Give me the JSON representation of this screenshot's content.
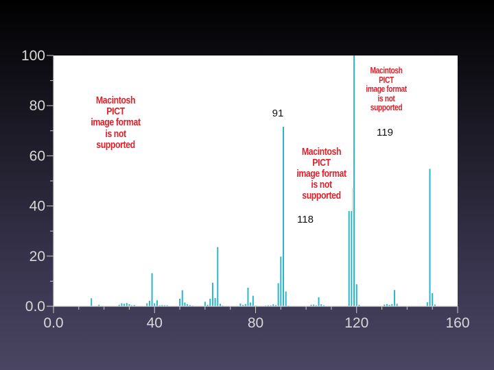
{
  "chart_data": {
    "type": "bar",
    "xlim": [
      0,
      160
    ],
    "ylim": [
      0,
      100
    ],
    "x_ticks": [
      "0.0",
      "40",
      "80",
      "120",
      "160"
    ],
    "y_ticks": [
      "0.0",
      "20",
      "40",
      "60",
      "80",
      "100"
    ],
    "x_minor_step": 10,
    "y_minor_step": 10,
    "grid": false,
    "bar_color": "#29b6c8",
    "peaks": [
      {
        "x": 15,
        "y": 3.2
      },
      {
        "x": 18,
        "y": 0.6
      },
      {
        "x": 26,
        "y": 0.6
      },
      {
        "x": 27,
        "y": 1.2
      },
      {
        "x": 28,
        "y": 1.0
      },
      {
        "x": 29,
        "y": 1.3
      },
      {
        "x": 30,
        "y": 0.8
      },
      {
        "x": 31,
        "y": 0.4
      },
      {
        "x": 32,
        "y": 0.5
      },
      {
        "x": 37,
        "y": 1.2
      },
      {
        "x": 38,
        "y": 2.2
      },
      {
        "x": 39,
        "y": 13.2
      },
      {
        "x": 40,
        "y": 1.2
      },
      {
        "x": 41,
        "y": 2.4
      },
      {
        "x": 42,
        "y": 0.4
      },
      {
        "x": 43,
        "y": 0.5
      },
      {
        "x": 44,
        "y": 0.4
      },
      {
        "x": 45,
        "y": 0.4
      },
      {
        "x": 50,
        "y": 3.0
      },
      {
        "x": 51,
        "y": 6.4
      },
      {
        "x": 52,
        "y": 1.5
      },
      {
        "x": 53,
        "y": 0.8
      },
      {
        "x": 54,
        "y": 0.5
      },
      {
        "x": 55,
        "y": 0.3
      },
      {
        "x": 60,
        "y": 1.8
      },
      {
        "x": 61,
        "y": 0.6
      },
      {
        "x": 62,
        "y": 3.0
      },
      {
        "x": 63,
        "y": 9.4
      },
      {
        "x": 64,
        "y": 3.3
      },
      {
        "x": 65,
        "y": 23.6
      },
      {
        "x": 66,
        "y": 1.0
      },
      {
        "x": 67,
        "y": 0.3
      },
      {
        "x": 74,
        "y": 1.1
      },
      {
        "x": 75,
        "y": 0.6
      },
      {
        "x": 76,
        "y": 0.9
      },
      {
        "x": 77,
        "y": 7.4
      },
      {
        "x": 78,
        "y": 1.5
      },
      {
        "x": 79,
        "y": 4.2
      },
      {
        "x": 80,
        "y": 0.3
      },
      {
        "x": 84,
        "y": 0.3
      },
      {
        "x": 85,
        "y": 0.4
      },
      {
        "x": 86,
        "y": 0.4
      },
      {
        "x": 87,
        "y": 0.8
      },
      {
        "x": 88,
        "y": 0.5
      },
      {
        "x": 89,
        "y": 9.2
      },
      {
        "x": 90,
        "y": 19.8
      },
      {
        "x": 91,
        "y": 71.6
      },
      {
        "x": 92,
        "y": 5.9
      },
      {
        "x": 93,
        "y": 0.3
      },
      {
        "x": 102,
        "y": 0.6
      },
      {
        "x": 103,
        "y": 0.7
      },
      {
        "x": 104,
        "y": 0.4
      },
      {
        "x": 105,
        "y": 3.6
      },
      {
        "x": 106,
        "y": 0.8
      },
      {
        "x": 107,
        "y": 0.4
      },
      {
        "x": 117,
        "y": 41.0
      },
      {
        "x": 118,
        "y": 47.2
      },
      {
        "x": 119,
        "y": 100.0
      },
      {
        "x": 120,
        "y": 8.8
      },
      {
        "x": 121,
        "y": 0.6
      },
      {
        "x": 131,
        "y": 0.7
      },
      {
        "x": 132,
        "y": 0.9
      },
      {
        "x": 133,
        "y": 0.6
      },
      {
        "x": 134,
        "y": 0.9
      },
      {
        "x": 135,
        "y": 6.5
      },
      {
        "x": 136,
        "y": 1.0
      },
      {
        "x": 148,
        "y": 1.6
      },
      {
        "x": 149,
        "y": 54.8
      },
      {
        "x": 150,
        "y": 5.2
      },
      {
        "x": 151,
        "y": 0.7
      }
    ],
    "annotations": [
      {
        "text": "91",
        "x": 91
      },
      {
        "text": "119",
        "x": 119
      },
      {
        "text": "118",
        "x": 118
      }
    ]
  },
  "placeholders": [
    {
      "text": "Macintosh PICT\nimage format\nis not supported"
    },
    {
      "text": "Macintosh PICT\nimage format\nis not supported"
    },
    {
      "text": "Macintosh PICT\nimage format\nis not supported"
    }
  ]
}
